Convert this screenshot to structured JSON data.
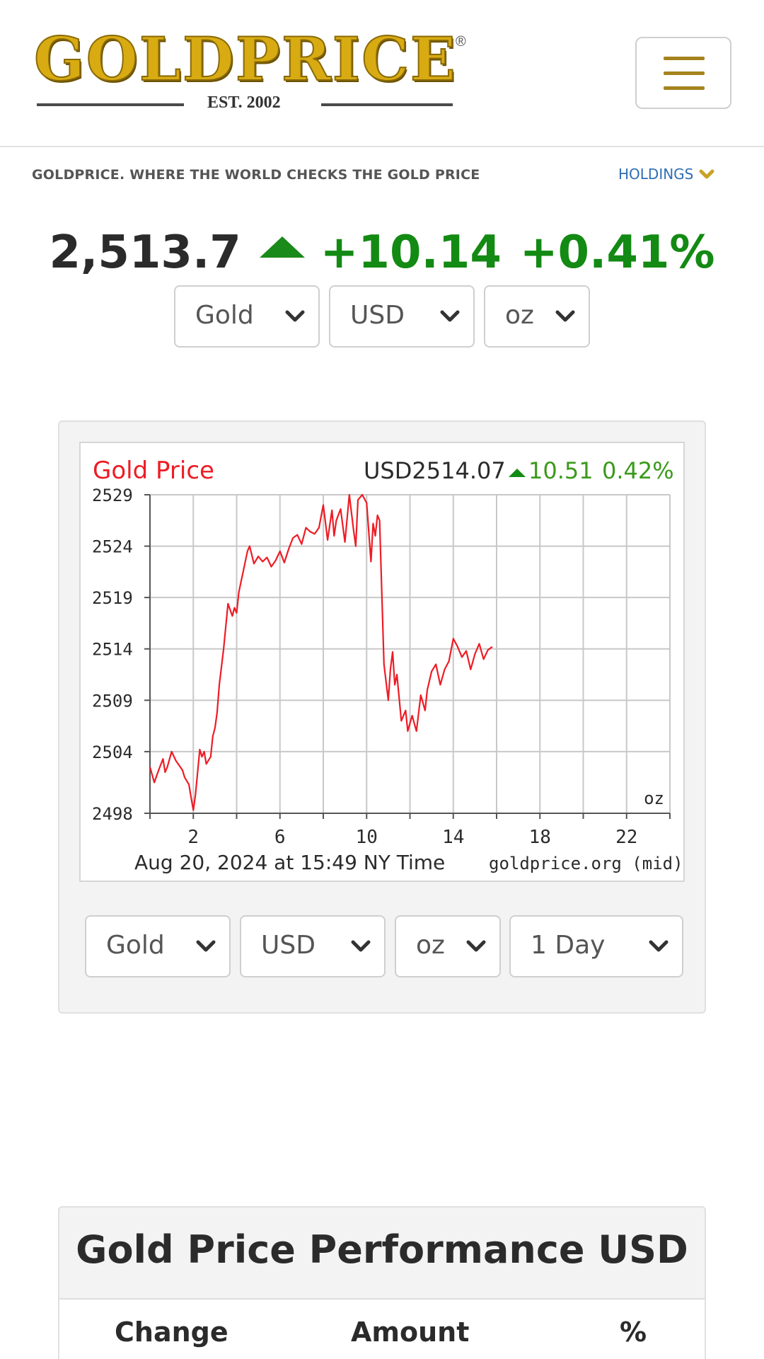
{
  "header": {
    "logo_text": "GOLDPRICE",
    "logo_mark": "®",
    "logo_est": "EST. 2002",
    "menu_icon": "hamburger-icon"
  },
  "tagline": "GOLDPRICE. WHERE THE WORLD CHECKS THE GOLD PRICE",
  "holdings": {
    "label": "HOLDINGS",
    "icon": "chevron-down-icon"
  },
  "quote": {
    "price": "2,513.7",
    "change": "+10.14",
    "change_pct": "+0.41%",
    "direction_icon": "triangle-up-icon",
    "up_color": "#138a13"
  },
  "top_selectors": {
    "metal": "Gold",
    "currency": "USD",
    "unit": "oz"
  },
  "chart_data": {
    "type": "line",
    "title": "Gold Price",
    "title_color": "#ee1c25",
    "header_price": "USD2514.07",
    "header_change": "10.51",
    "header_pct": "0.42%",
    "xlabel": "",
    "ylabel": "",
    "unit_label": "oz",
    "footer_left": "Aug 20, 2024 at 15:49 NY Time",
    "footer_right": "goldprice.org (mid)",
    "xlim": [
      0,
      24
    ],
    "ylim": [
      2498,
      2529
    ],
    "x_ticks": [
      2,
      6,
      10,
      14,
      18,
      22
    ],
    "y_ticks": [
      2498,
      2504,
      2509,
      2514,
      2519,
      2524,
      2529
    ],
    "grid": true,
    "series": [
      {
        "color": "#ee1c25",
        "x": [
          0.0,
          0.2,
          0.4,
          0.6,
          0.7,
          0.8,
          1.0,
          1.2,
          1.3,
          1.5,
          1.6,
          1.8,
          1.9,
          2.0,
          2.1,
          2.3,
          2.4,
          2.5,
          2.6,
          2.8,
          2.9,
          3.0,
          3.1,
          3.2,
          3.4,
          3.6,
          3.8,
          3.9,
          4.0,
          4.1,
          4.2,
          4.3,
          4.5,
          4.6,
          4.8,
          5.0,
          5.2,
          5.4,
          5.6,
          5.8,
          6.0,
          6.2,
          6.4,
          6.6,
          6.8,
          7.0,
          7.2,
          7.4,
          7.6,
          7.8,
          8.0,
          8.2,
          8.4,
          8.5,
          8.6,
          8.8,
          9.0,
          9.2,
          9.4,
          9.5,
          9.6,
          9.8,
          10.0,
          10.2,
          10.3,
          10.4,
          10.5,
          10.6,
          10.8,
          11.0,
          11.1,
          11.2,
          11.3,
          11.4,
          11.6,
          11.8,
          11.9,
          12.1,
          12.3,
          12.5,
          12.7,
          12.8,
          13.0,
          13.2,
          13.4,
          13.6,
          13.8,
          14.0,
          14.2,
          14.4,
          14.6,
          14.8,
          15.0,
          15.2,
          15.4,
          15.6,
          15.8
        ],
        "y": [
          2502.5,
          2501.0,
          2502.2,
          2503.3,
          2502.0,
          2502.5,
          2504.0,
          2503.1,
          2502.8,
          2502.2,
          2501.5,
          2500.8,
          2499.5,
          2498.3,
          2499.8,
          2504.2,
          2503.5,
          2504.0,
          2502.8,
          2503.5,
          2505.5,
          2506.3,
          2507.8,
          2510.5,
          2514.0,
          2518.4,
          2517.2,
          2518.0,
          2517.5,
          2519.5,
          2520.5,
          2521.5,
          2523.5,
          2524.0,
          2522.3,
          2523.0,
          2522.5,
          2522.9,
          2522.0,
          2522.6,
          2523.5,
          2522.4,
          2523.7,
          2524.8,
          2525.1,
          2524.2,
          2525.8,
          2525.4,
          2525.2,
          2525.8,
          2528.0,
          2524.6,
          2527.5,
          2525.0,
          2526.5,
          2527.6,
          2524.4,
          2529.0,
          2525.5,
          2524.0,
          2528.5,
          2529.0,
          2528.2,
          2522.5,
          2526.2,
          2525.0,
          2527.0,
          2526.5,
          2512.5,
          2509.0,
          2512.0,
          2513.7,
          2510.5,
          2511.5,
          2507.0,
          2508.0,
          2506.0,
          2507.5,
          2506.0,
          2509.5,
          2508.0,
          2510.0,
          2511.8,
          2512.5,
          2510.5,
          2512.0,
          2512.8,
          2515.0,
          2514.2,
          2513.2,
          2513.8,
          2512.0,
          2513.5,
          2514.5,
          2513.0,
          2513.9,
          2514.2
        ]
      }
    ]
  },
  "bottom_selectors": {
    "metal": "Gold",
    "currency": "USD",
    "unit": "oz",
    "range": "1 Day"
  },
  "performance": {
    "title": "Gold Price Performance USD",
    "columns": [
      "Change",
      "Amount",
      "%"
    ]
  }
}
